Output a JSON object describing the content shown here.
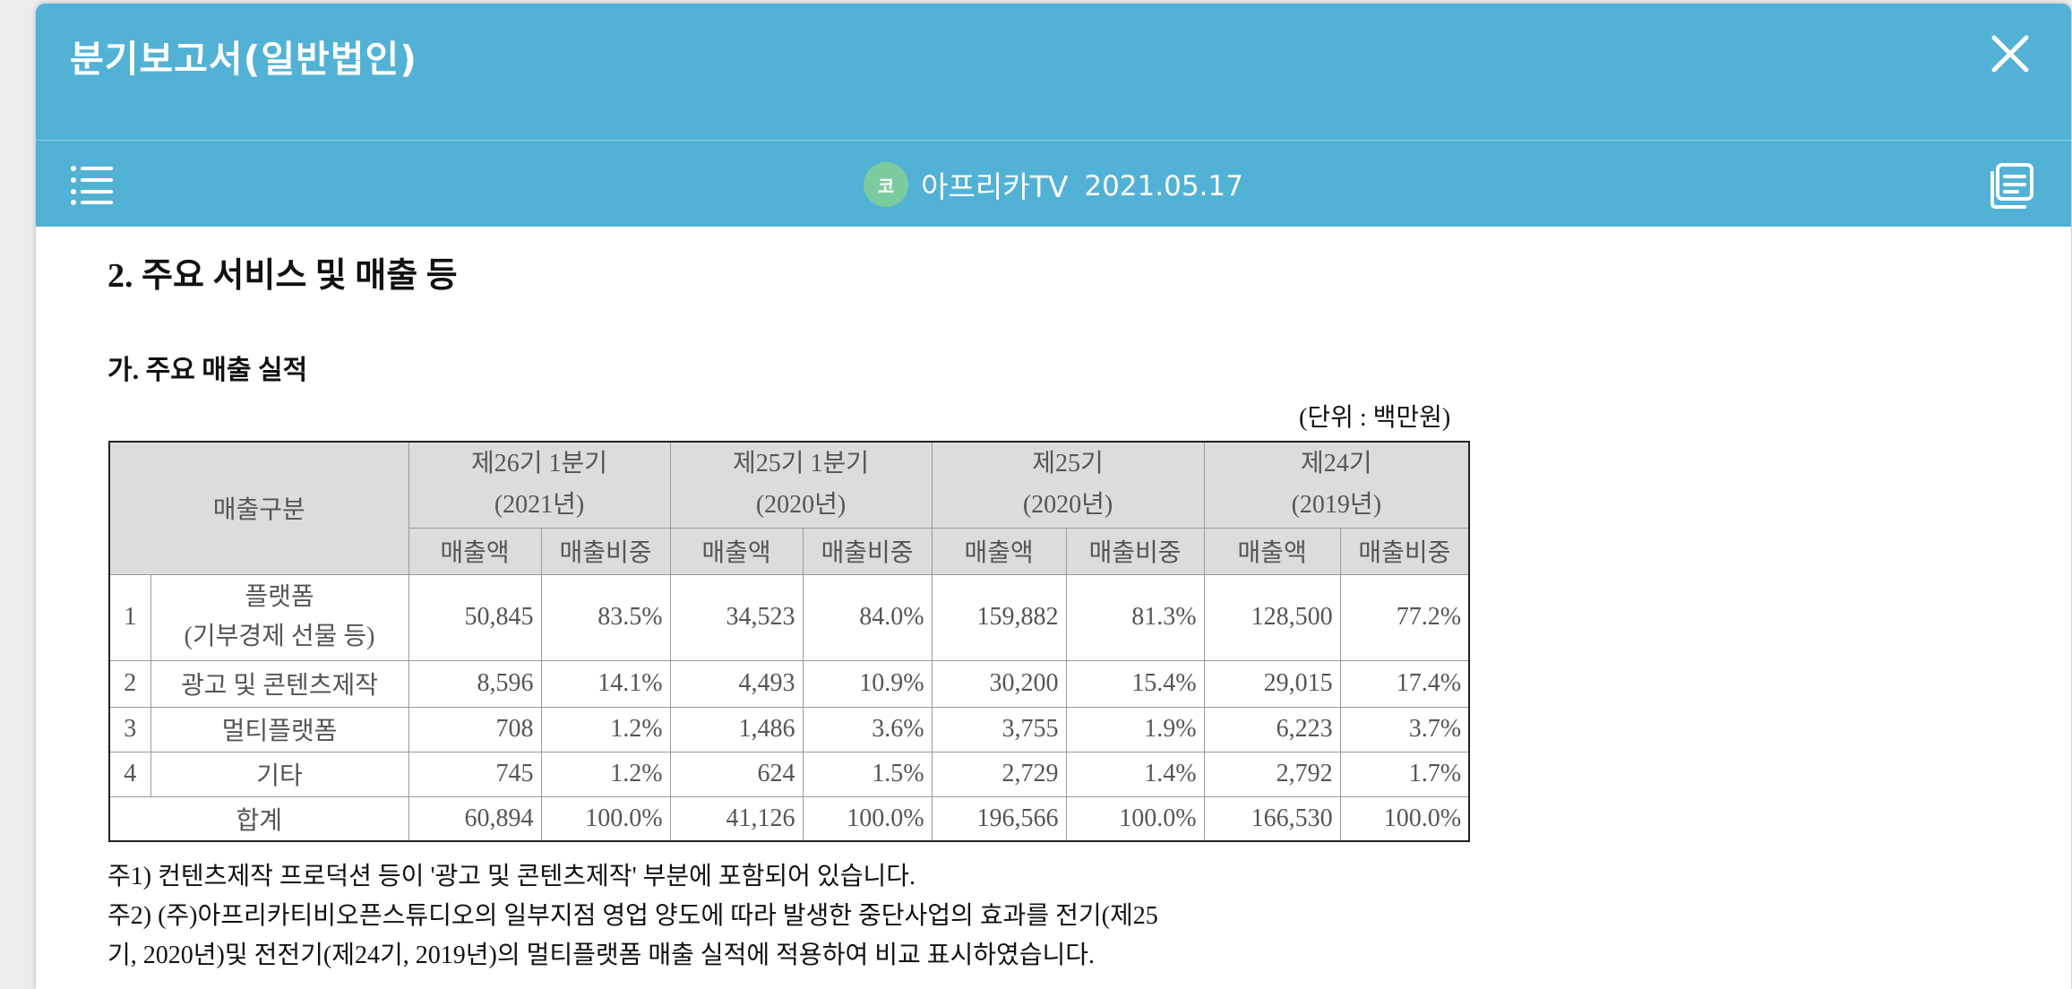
{
  "header": {
    "title": "분기보고서(일반법인)"
  },
  "toolbar": {
    "avatar_text": "코",
    "company_name": "아프리카TV",
    "date": "2021.05.17"
  },
  "document": {
    "section_title": "2. 주요 서비스 및 매출 등",
    "subsection_title": "가. 주요 매출 실적",
    "unit_label": "(단위 : 백만원)",
    "table": {
      "category_header": "매출구분",
      "periods": [
        {
          "line1": "제26기 1분기",
          "line2": "(2021년)"
        },
        {
          "line1": "제25기 1분기",
          "line2": "(2020년)"
        },
        {
          "line1": "제25기",
          "line2": "(2020년)"
        },
        {
          "line1": "제24기",
          "line2": "(2019년)"
        }
      ],
      "col_amount": "매출액",
      "col_ratio": "매출비중",
      "rows": [
        {
          "no": "1",
          "name1": "플랫폼",
          "name2": "(기부경제 선물 등)",
          "values": [
            "50,845",
            "83.5%",
            "34,523",
            "84.0%",
            "159,882",
            "81.3%",
            "128,500",
            "77.2%"
          ]
        },
        {
          "no": "2",
          "name1": "광고 및 콘텐츠제작",
          "values": [
            "8,596",
            "14.1%",
            "4,493",
            "10.9%",
            "30,200",
            "15.4%",
            "29,015",
            "17.4%"
          ]
        },
        {
          "no": "3",
          "name1": "멀티플랫폼",
          "values": [
            "708",
            "1.2%",
            "1,486",
            "3.6%",
            "3,755",
            "1.9%",
            "6,223",
            "3.7%"
          ]
        },
        {
          "no": "4",
          "name1": "기타",
          "values": [
            "745",
            "1.2%",
            "624",
            "1.5%",
            "2,729",
            "1.4%",
            "2,792",
            "1.7%"
          ]
        }
      ],
      "total": {
        "label": "합계",
        "values": [
          "60,894",
          "100.0%",
          "41,126",
          "100.0%",
          "196,566",
          "100.0%",
          "166,530",
          "100.0%"
        ]
      }
    },
    "notes": [
      "주1) 컨텐츠제작 프로덕션 등이 '광고 및 콘텐츠제작' 부분에 포함되어 있습니다.",
      "주2) (주)아프리카티비오픈스튜디오의 일부지점 영업 양도에 따라 발생한 중단사업의 효과를 전기(제25",
      "기, 2020년)및 전전기(제24기, 2019년)의 멀티플랫폼 매출 실적에 적용하여 비교 표시하였습니다."
    ]
  }
}
